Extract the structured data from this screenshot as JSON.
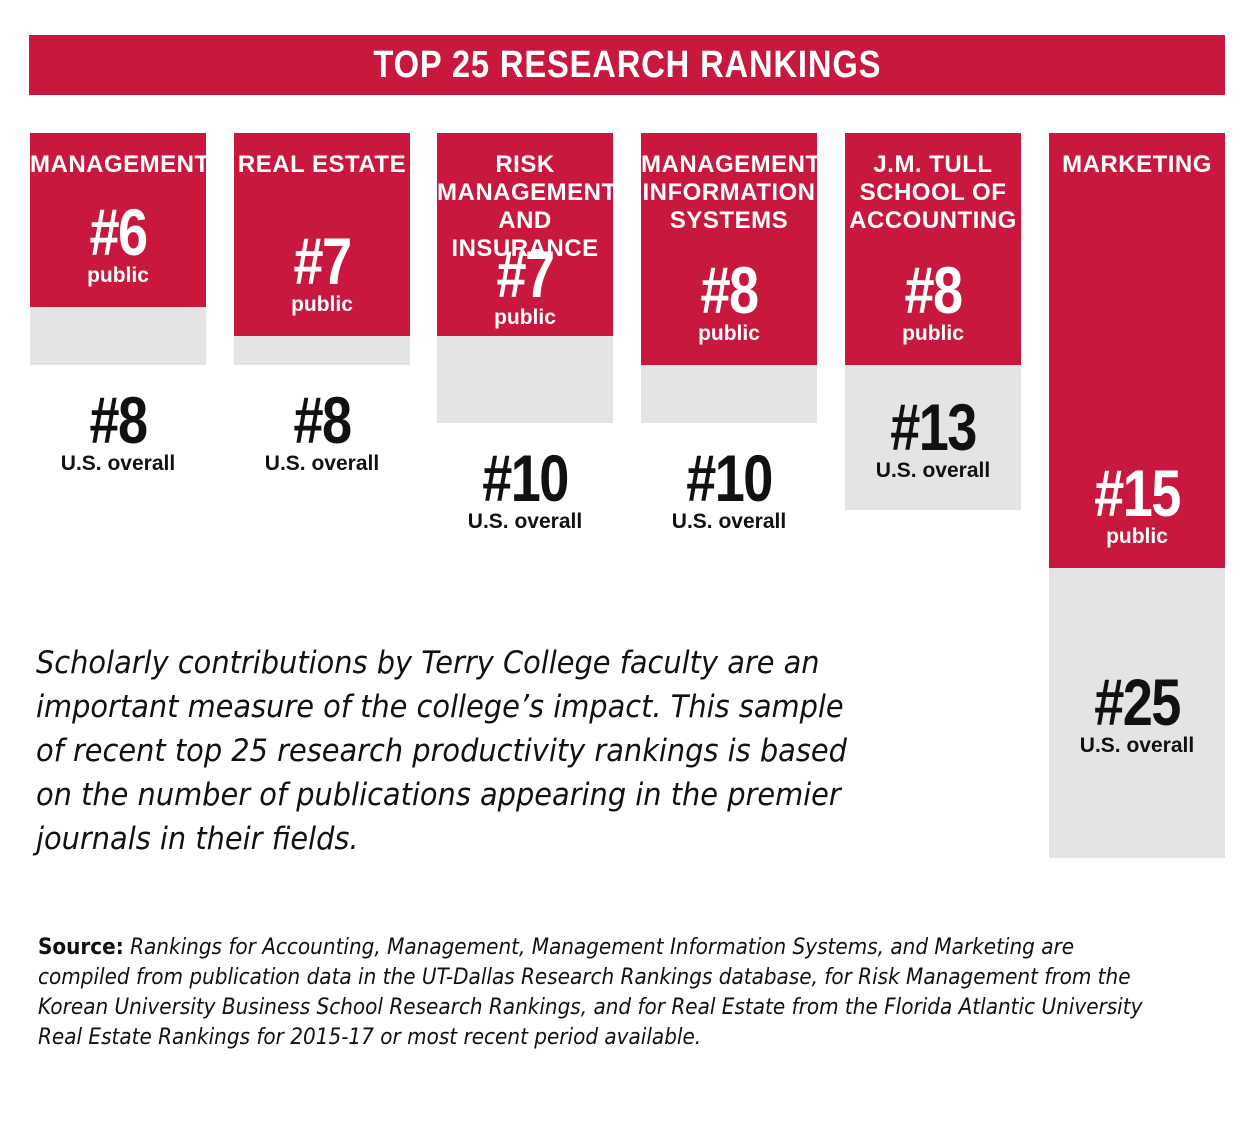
{
  "banner": {
    "title": "TOP 25 RESEARCH RANKINGS"
  },
  "chart_data": {
    "type": "bar",
    "title": "TOP 25 RESEARCH RANKINGS",
    "categories": [
      "MANAGEMENT",
      "REAL ESTATE",
      "RISK MANAGEMENT AND INSURANCE",
      "MANAGEMENT INFORMATION SYSTEMS",
      "J.M. TULL SCHOOL OF ACCOUNTING",
      "MARKETING"
    ],
    "category_labels": [
      "MANAGEMENT",
      "REAL ESTATE",
      "RISK\nMANAGEMENT\nAND INSURANCE",
      "MANAGEMENT\nINFORMATION\nSYSTEMS",
      "J.M. TULL\nSCHOOL OF\nACCOUNTING",
      "MARKETING"
    ],
    "series": [
      {
        "name": "public",
        "values": [
          6,
          7,
          7,
          8,
          8,
          15
        ],
        "color": "#c8183e"
      },
      {
        "name": "U.S. overall",
        "values": [
          8,
          8,
          10,
          10,
          13,
          25
        ],
        "color": "#e4e4e6"
      }
    ],
    "public_labels": [
      "#6",
      "#7",
      "#7",
      "#8",
      "#8",
      "#15"
    ],
    "public_sub": "public",
    "us_labels": [
      "#8",
      "#8",
      "#10",
      "#10",
      "#13",
      "#25"
    ],
    "us_sub": "U.S. overall"
  },
  "description": "Scholarly contributions by Terry College faculty are an important measure of the college’s impact. This sample of recent top 25 research productivity rankings is based on the number of publications appearing in the premier journals in their fields.",
  "source": {
    "label": "Source:",
    "text": "Rankings for Accounting, Management, Management Information Systems, and Marketing are compiled from publication data in the UT-Dallas Research Rankings database, for Risk Management from the Korean University Business School Research Rankings, and for Real Estate from the Florida Atlantic University Real Estate Rankings for 2015-17 or most recent period available."
  },
  "colors": {
    "accent": "#c8183e",
    "gray": "#e4e4e6",
    "text": "#111111"
  }
}
